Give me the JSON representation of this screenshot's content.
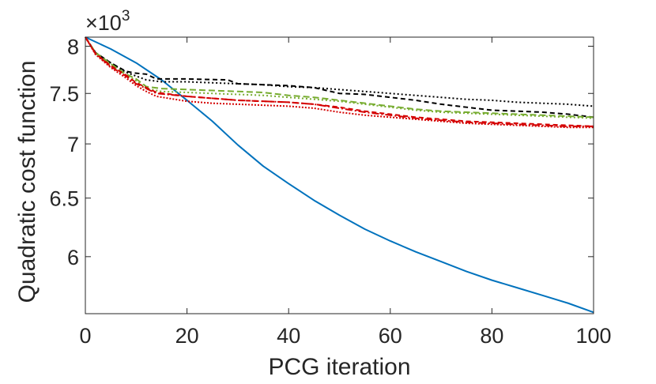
{
  "chart_data": {
    "type": "line",
    "xlabel": "PCG iteration",
    "ylabel": "Quadratic cost function",
    "y_multiplier_base": "×10",
    "y_multiplier_exp": "3",
    "xlim": [
      0,
      100
    ],
    "ylim": [
      5.55,
      8.1
    ],
    "y_scale": "log",
    "grid": false,
    "box": true,
    "xticks": [
      0,
      20,
      40,
      60,
      80,
      100
    ],
    "xtick_labels": [
      "0",
      "20",
      "40",
      "60",
      "80",
      "100"
    ],
    "yticks": [
      6,
      6.5,
      7,
      7.5,
      8
    ],
    "ytick_labels": [
      "6",
      "6.5",
      "7",
      "7.5",
      "8"
    ],
    "series": [
      {
        "color": "#0072BD",
        "dash": "solid",
        "x": [
          0,
          5,
          10,
          15,
          20,
          25,
          30,
          35,
          40,
          45,
          50,
          55,
          60,
          65,
          70,
          75,
          80,
          85,
          90,
          95,
          100
        ],
        "y": [
          8.1,
          7.97,
          7.82,
          7.64,
          7.43,
          7.22,
          6.99,
          6.79,
          6.63,
          6.48,
          6.35,
          6.23,
          6.13,
          6.04,
          5.96,
          5.88,
          5.81,
          5.75,
          5.69,
          5.63,
          5.56
        ]
      },
      {
        "color": "#000000",
        "dash": "6,4",
        "x": [
          0,
          2,
          5,
          8,
          10,
          12,
          14,
          20,
          28,
          30,
          35,
          40,
          45,
          50,
          55,
          60,
          65,
          70,
          75,
          80,
          85,
          90,
          95,
          100
        ],
        "y": [
          8.1,
          7.93,
          7.82,
          7.73,
          7.71,
          7.7,
          7.65,
          7.65,
          7.64,
          7.6,
          7.59,
          7.58,
          7.56,
          7.5,
          7.49,
          7.46,
          7.43,
          7.39,
          7.36,
          7.33,
          7.32,
          7.31,
          7.29,
          7.26
        ]
      },
      {
        "color": "#000000",
        "dash": "2,3",
        "x": [
          0,
          2,
          5,
          8,
          10,
          12,
          15,
          20,
          25,
          30,
          35,
          40,
          45,
          50,
          55,
          60,
          65,
          70,
          75,
          80,
          85,
          90,
          95,
          100
        ],
        "y": [
          8.1,
          7.93,
          7.82,
          7.72,
          7.68,
          7.64,
          7.62,
          7.62,
          7.61,
          7.6,
          7.59,
          7.57,
          7.56,
          7.54,
          7.52,
          7.5,
          7.48,
          7.46,
          7.44,
          7.43,
          7.41,
          7.4,
          7.39,
          7.37
        ]
      },
      {
        "color": "#77AC30",
        "dash": "8,4",
        "x": [
          0,
          2,
          5,
          8,
          10,
          12,
          15,
          20,
          25,
          30,
          35,
          40,
          45,
          50,
          55,
          60,
          65,
          70,
          75,
          80,
          85,
          90,
          95,
          100
        ],
        "y": [
          8.1,
          7.93,
          7.81,
          7.7,
          7.65,
          7.57,
          7.55,
          7.54,
          7.53,
          7.52,
          7.51,
          7.48,
          7.46,
          7.43,
          7.4,
          7.37,
          7.34,
          7.32,
          7.31,
          7.3,
          7.29,
          7.28,
          7.27,
          7.26
        ]
      },
      {
        "color": "#77AC30",
        "dash": "2,3",
        "x": [
          0,
          2,
          5,
          8,
          10,
          12,
          15,
          20,
          25,
          30,
          35,
          40,
          45,
          50,
          55,
          60,
          65,
          70,
          75,
          80,
          85,
          90,
          95,
          100
        ],
        "y": [
          8.1,
          7.92,
          7.8,
          7.69,
          7.63,
          7.55,
          7.52,
          7.51,
          7.5,
          7.49,
          7.48,
          7.46,
          7.44,
          7.42,
          7.39,
          7.36,
          7.33,
          7.31,
          7.3,
          7.29,
          7.28,
          7.27,
          7.26,
          7.25
        ]
      },
      {
        "color": "#D40000",
        "dash": "6,4",
        "x": [
          0,
          2,
          5,
          8,
          10,
          12,
          14,
          20,
          25,
          30,
          35,
          40,
          45,
          50,
          55,
          60,
          65,
          70,
          75,
          80,
          85,
          90,
          95,
          100
        ],
        "y": [
          8.1,
          7.92,
          7.79,
          7.69,
          7.61,
          7.56,
          7.51,
          7.47,
          7.45,
          7.43,
          7.42,
          7.41,
          7.39,
          7.36,
          7.32,
          7.29,
          7.26,
          7.24,
          7.22,
          7.21,
          7.2,
          7.19,
          7.18,
          7.17
        ]
      },
      {
        "color": "#D40000",
        "dash": "9,3,2,3",
        "x": [
          0,
          2,
          5,
          8,
          10,
          12,
          14,
          20,
          25,
          30,
          35,
          40,
          45,
          50,
          55,
          60,
          65,
          70,
          75,
          80,
          85,
          90,
          95,
          100
        ],
        "y": [
          8.1,
          7.92,
          7.78,
          7.68,
          7.6,
          7.55,
          7.5,
          7.47,
          7.45,
          7.43,
          7.42,
          7.41,
          7.39,
          7.35,
          7.31,
          7.28,
          7.25,
          7.23,
          7.21,
          7.2,
          7.19,
          7.18,
          7.17,
          7.17
        ]
      },
      {
        "color": "#D40000",
        "dash": "2,2",
        "x": [
          0,
          2,
          5,
          8,
          10,
          12,
          14,
          20,
          25,
          30,
          35,
          40,
          45,
          50,
          55,
          60,
          65,
          70,
          75,
          80,
          85,
          90,
          95,
          100
        ],
        "y": [
          8.1,
          7.91,
          7.77,
          7.66,
          7.58,
          7.52,
          7.47,
          7.42,
          7.4,
          7.39,
          7.38,
          7.37,
          7.35,
          7.31,
          7.28,
          7.26,
          7.24,
          7.22,
          7.2,
          7.19,
          7.18,
          7.17,
          7.16,
          7.16
        ]
      }
    ]
  }
}
